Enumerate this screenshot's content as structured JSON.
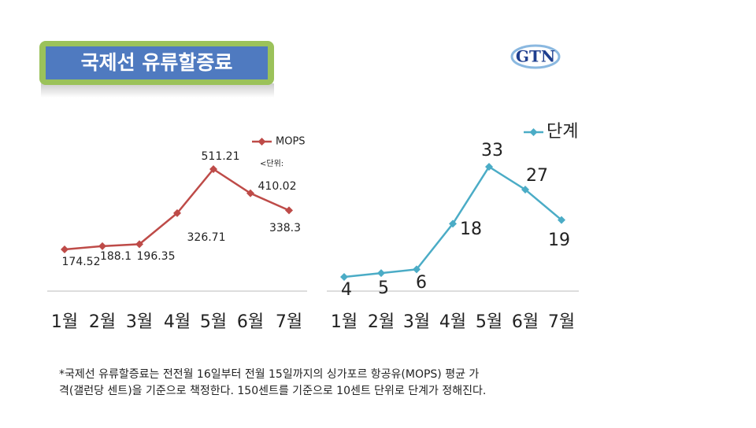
{
  "header": {
    "title": "국제선 유류할증료",
    "logo": "GTN"
  },
  "chart_data": [
    {
      "type": "line",
      "categories": [
        "1월",
        "2월",
        "3월",
        "4월",
        "5월",
        "6월",
        "7월"
      ],
      "series": [
        {
          "name": "MOPS",
          "color": "#be4b48",
          "values": [
            174.52,
            188.1,
            196.35,
            326.71,
            511.21,
            410.02,
            338.3
          ]
        }
      ],
      "annotation": "<단위:"
    },
    {
      "type": "line",
      "categories": [
        "1월",
        "2월",
        "3월",
        "4월",
        "5월",
        "6월",
        "7월"
      ],
      "series": [
        {
          "name": "단계",
          "color": "#4bacc6",
          "values": [
            4,
            5,
            6,
            18,
            33,
            27,
            19
          ]
        }
      ]
    }
  ],
  "footnote": [
    "*국제선 유류할증료는 전전월 16일부터 전월 15일까지의 싱가포르 항공유(MOPS) 평균 가",
    "격(갤런당 센트)을 기준으로 책정한다. 150센트를 기준으로 10센트 단위로 단계가 정해진다."
  ]
}
